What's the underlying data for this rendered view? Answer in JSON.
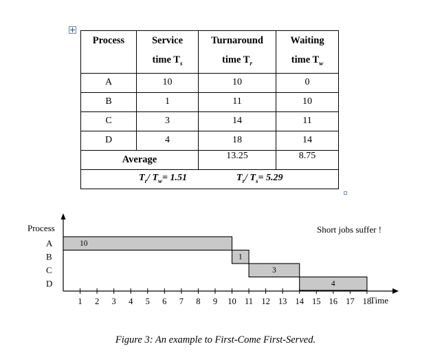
{
  "table": {
    "headers": {
      "process": "Process",
      "service_line1": "Service",
      "service_line2": "time T",
      "service_sub": "s",
      "turnaround_line1": "Turnaround",
      "turnaround_line2": "time T",
      "turnaround_sub": "r",
      "waiting_line1": "Waiting",
      "waiting_line2": "time T",
      "waiting_sub": "w"
    },
    "rows": [
      {
        "process": "A",
        "service": "10",
        "turnaround": "10",
        "waiting": "0"
      },
      {
        "process": "B",
        "service": "1",
        "turnaround": "11",
        "waiting": "10"
      },
      {
        "process": "C",
        "service": "3",
        "turnaround": "14",
        "waiting": "11"
      },
      {
        "process": "D",
        "service": "4",
        "turnaround": "18",
        "waiting": "14"
      }
    ],
    "average": {
      "label": "Average",
      "turnaround": "13.25",
      "waiting": "8.75"
    },
    "ratios": {
      "r1_a": "T",
      "r1_a_sub": "r",
      "r1_mid": "/ T",
      "r1_b_sub": "w",
      "r1_val": "= 1.51",
      "r2_a": "T",
      "r2_a_sub": "r",
      "r2_mid": "/ T",
      "r2_b_sub": "s",
      "r2_val": "= 5.29"
    }
  },
  "chart_data": {
    "type": "gantt",
    "y_axis_label": "Process",
    "x_axis_label": "Time",
    "processes": [
      "A",
      "B",
      "C",
      "D"
    ],
    "x_ticks": [
      1,
      2,
      3,
      4,
      5,
      6,
      7,
      8,
      9,
      10,
      11,
      12,
      13,
      14,
      15,
      16,
      17,
      18
    ],
    "bars": [
      {
        "process": "A",
        "start": 0,
        "end": 10,
        "label": "10"
      },
      {
        "process": "B",
        "start": 10,
        "end": 11,
        "label": "1"
      },
      {
        "process": "C",
        "start": 11,
        "end": 14,
        "label": "3"
      },
      {
        "process": "D",
        "start": 14,
        "end": 18,
        "label": "4"
      }
    ],
    "annotation": "Short jobs suffer !",
    "bar_fill": "#c8c8c8"
  },
  "caption": "Figure 3: An example to First-Come First-Served."
}
